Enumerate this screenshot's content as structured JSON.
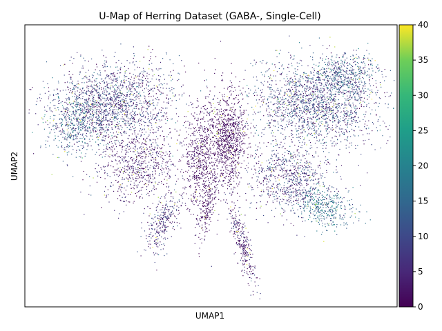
{
  "chart_data": {
    "type": "scatter",
    "title": "U-Map of Herring Dataset (GABA-, Single-Cell)",
    "xlabel": "UMAP1",
    "ylabel": "UMAP2",
    "xticks": "none",
    "yticks": "none",
    "grid": false,
    "colormap": "viridis",
    "colorbar": {
      "range": [
        0,
        40
      ],
      "ticks": [
        "0",
        "5",
        "10",
        "15",
        "20",
        "25",
        "30",
        "35",
        "40"
      ],
      "placement": "right"
    },
    "point_count_description": "many thousands of single cells colored by value",
    "background_color": "#ffffff",
    "low_color": "#440154",
    "high_color": "#fde725"
  }
}
